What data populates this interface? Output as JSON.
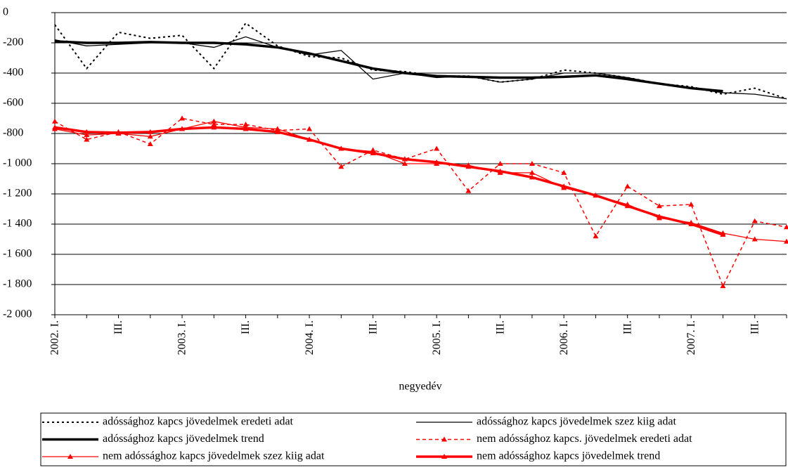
{
  "chart_data": {
    "type": "line",
    "x_label": "negyedév",
    "categories": [
      "2002. I.",
      null,
      "III.",
      null,
      "2003. I.",
      null,
      "III.",
      null,
      "2004. I.",
      null,
      "III.",
      null,
      "2005. I.",
      null,
      "III.",
      null,
      "2006. I.",
      null,
      "III.",
      null,
      "2007. I.",
      null,
      "III.",
      null
    ],
    "ylim": [
      -2000,
      0
    ],
    "yticks": [
      0,
      -200,
      -400,
      -600,
      -800,
      {
        "value": -1000,
        "label": "-1 000"
      },
      {
        "value": -1200,
        "label": "-1 200"
      },
      {
        "value": -1400,
        "label": "-1 400"
      },
      {
        "value": -1600,
        "label": "-1 600"
      },
      {
        "value": -1800,
        "label": "-1 800"
      },
      {
        "value": -2000,
        "label": "-2 000"
      }
    ],
    "grid": true,
    "legend": "bottom",
    "series": [
      {
        "name": "adóssághoz kapcs jövedelmek eredeti adat",
        "color": "#000000",
        "line_style": "dotted",
        "marker": "none",
        "values": [
          -80,
          -370,
          -130,
          -170,
          -150,
          -370,
          -70,
          -220,
          -290,
          -300,
          -380,
          -390,
          -420,
          -420,
          -460,
          -440,
          -380,
          -400,
          -430,
          -470,
          -490,
          -540,
          -500,
          -570
        ]
      },
      {
        "name": "adóssághoz kapcs jövedelmek szez kiig adat",
        "color": "#000000",
        "line_style": "solid",
        "marker": "none",
        "values": [
          -180,
          -220,
          -210,
          -200,
          -200,
          -230,
          -160,
          -230,
          -280,
          -250,
          -440,
          -400,
          -430,
          -420,
          -460,
          -440,
          -400,
          -400,
          -430,
          -470,
          -500,
          -530,
          -540,
          -570
        ]
      },
      {
        "name": "adóssághoz kapcs jövedelmek trend",
        "color": "#000000",
        "line_style": "thick",
        "marker": "none",
        "values": [
          -190,
          -200,
          -200,
          -195,
          -200,
          -200,
          -210,
          -230,
          -270,
          -320,
          -370,
          -400,
          -420,
          -425,
          -430,
          -430,
          -425,
          -415,
          -440,
          -470,
          -500,
          -520,
          null,
          null
        ]
      },
      {
        "name": "nem adóssághoz kapcs. jövedelmek eredeti adat",
        "color": "#ff0000",
        "line_style": "dashed",
        "marker": "triangle",
        "values": [
          -720,
          -840,
          -790,
          -870,
          -700,
          -740,
          -740,
          -780,
          -770,
          -1020,
          -910,
          -970,
          -900,
          -1180,
          -1000,
          -1000,
          -1060,
          -1480,
          -1150,
          -1280,
          -1270,
          -1810,
          -1380,
          -1420
        ]
      },
      {
        "name": "nem adóssághoz kapcs jövedelmek szez kiig adat",
        "color": "#ff0000",
        "line_style": "solid",
        "marker": "triangle",
        "values": [
          -770,
          -810,
          -800,
          -820,
          -770,
          -720,
          -760,
          -770,
          -840,
          -900,
          -920,
          -1000,
          -1000,
          -1010,
          -1060,
          -1060,
          -1160,
          -1210,
          -1270,
          -1360,
          -1390,
          -1460,
          -1500,
          -1515
        ]
      },
      {
        "name": "nem adóssághoz kapcs jövedelmek trend",
        "color": "#ff0000",
        "line_style": "thick",
        "marker": "triangle",
        "values": [
          -760,
          -790,
          -795,
          -790,
          -770,
          -760,
          -770,
          -790,
          -840,
          -900,
          -930,
          -970,
          -990,
          -1020,
          -1050,
          -1090,
          -1150,
          -1210,
          -1280,
          -1350,
          -1400,
          -1470,
          null,
          null
        ]
      }
    ]
  }
}
